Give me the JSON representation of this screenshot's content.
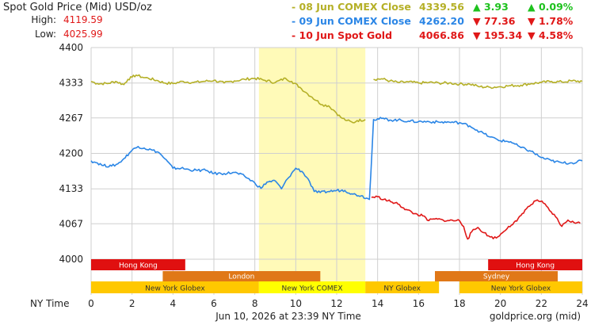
{
  "header": {
    "title": "Spot Gold Price (Mid) USD/oz",
    "high_label": "High:",
    "high_value": "4119.59",
    "low_label": "Low:",
    "low_value": "4025.99"
  },
  "legend": [
    {
      "name": "08 Jun COMEX Close",
      "price": "4339.56",
      "change": "3.93",
      "pct": "0.09%",
      "direction": "up",
      "color": "#b5b027",
      "change_color": "#1ec21e"
    },
    {
      "name": "09 Jun COMEX Close",
      "price": "4262.20",
      "change": "77.36",
      "pct": "1.78%",
      "direction": "down",
      "color": "#2b86e6",
      "change_color": "#e01818"
    },
    {
      "name": "10 Jun Spot Gold",
      "price": "4066.86",
      "change": "195.34",
      "pct": "4.58%",
      "direction": "down",
      "color": "#e01818",
      "change_color": "#e01818"
    }
  ],
  "chart_data": {
    "type": "line",
    "ylim": [
      4000,
      4400
    ],
    "xlim": [
      0,
      24
    ],
    "y_ticks": [
      "4400",
      "4333",
      "4267",
      "4200",
      "4133",
      "4067",
      "4000"
    ],
    "y_tick_values": [
      4400,
      4333,
      4267,
      4200,
      4133,
      4067,
      4000
    ],
    "x_ticks": [
      "0",
      "2",
      "4",
      "6",
      "8",
      "10",
      "12",
      "14",
      "16",
      "18",
      "20",
      "22",
      "24"
    ],
    "x_label": "NY Time",
    "highlight_range": [
      8.2,
      13.4
    ],
    "grid": true,
    "series": [
      {
        "key": "d08",
        "color": "#b5b027",
        "label": "08 Jun COMEX Close",
        "points": [
          [
            0,
            4336
          ],
          [
            0.3,
            4332
          ],
          [
            0.8,
            4332
          ],
          [
            1.2,
            4336
          ],
          [
            1.6,
            4330
          ],
          [
            1.8,
            4340
          ],
          [
            2.0,
            4344
          ],
          [
            2.2,
            4348
          ],
          [
            2.5,
            4344
          ],
          [
            2.8,
            4342
          ],
          [
            3.2,
            4338
          ],
          [
            3.6,
            4333
          ],
          [
            4.0,
            4332
          ],
          [
            4.5,
            4336
          ],
          [
            5.0,
            4334
          ],
          [
            5.5,
            4336
          ],
          [
            6.0,
            4338
          ],
          [
            6.5,
            4333
          ],
          [
            7.0,
            4337
          ],
          [
            7.5,
            4340
          ],
          [
            8.0,
            4342
          ],
          [
            8.5,
            4338
          ],
          [
            9.0,
            4334
          ],
          [
            9.5,
            4342
          ],
          [
            9.8,
            4336
          ],
          [
            10.2,
            4325
          ],
          [
            10.5,
            4315
          ],
          [
            10.8,
            4306
          ],
          [
            11.0,
            4300
          ],
          [
            11.3,
            4292
          ],
          [
            11.6,
            4290
          ],
          [
            11.9,
            4280
          ],
          [
            12.2,
            4268
          ],
          [
            12.5,
            4262
          ],
          [
            12.8,
            4258
          ],
          [
            13.0,
            4262
          ],
          [
            13.4,
            4264
          ],
          [
            13.8,
            4340
          ],
          [
            14.2,
            4341
          ],
          [
            14.6,
            4337
          ],
          [
            15.0,
            4334
          ],
          [
            15.5,
            4335
          ],
          [
            16.0,
            4333
          ],
          [
            16.5,
            4334
          ],
          [
            17.0,
            4333
          ],
          [
            17.5,
            4333
          ],
          [
            18.0,
            4331
          ],
          [
            18.5,
            4331
          ],
          [
            19.0,
            4326
          ],
          [
            19.5,
            4325
          ],
          [
            20.0,
            4326
          ],
          [
            20.5,
            4328
          ],
          [
            21.0,
            4329
          ],
          [
            21.5,
            4332
          ],
          [
            22.0,
            4334
          ],
          [
            22.5,
            4336
          ],
          [
            23.0,
            4335
          ],
          [
            23.5,
            4337
          ],
          [
            24.0,
            4336
          ]
        ]
      },
      {
        "key": "d09",
        "color": "#2b86e6",
        "label": "09 Jun COMEX Close",
        "points": [
          [
            0,
            4186
          ],
          [
            0.3,
            4182
          ],
          [
            0.6,
            4177
          ],
          [
            1.0,
            4176
          ],
          [
            1.3,
            4180
          ],
          [
            1.6,
            4190
          ],
          [
            2.0,
            4206
          ],
          [
            2.3,
            4213
          ],
          [
            2.6,
            4210
          ],
          [
            3.0,
            4206
          ],
          [
            3.3,
            4202
          ],
          [
            3.6,
            4190
          ],
          [
            4.0,
            4172
          ],
          [
            4.4,
            4172
          ],
          [
            4.8,
            4169
          ],
          [
            5.2,
            4168
          ],
          [
            5.6,
            4168
          ],
          [
            6.0,
            4162
          ],
          [
            6.5,
            4162
          ],
          [
            7.0,
            4164
          ],
          [
            7.5,
            4157
          ],
          [
            8.0,
            4144
          ],
          [
            8.3,
            4134
          ],
          [
            8.6,
            4146
          ],
          [
            9.0,
            4148
          ],
          [
            9.3,
            4133
          ],
          [
            9.6,
            4152
          ],
          [
            10.0,
            4172
          ],
          [
            10.3,
            4166
          ],
          [
            10.6,
            4152
          ],
          [
            10.9,
            4128
          ],
          [
            11.2,
            4126
          ],
          [
            11.6,
            4128
          ],
          [
            12.0,
            4130
          ],
          [
            12.4,
            4130
          ],
          [
            12.8,
            4123
          ],
          [
            13.2,
            4120
          ],
          [
            13.6,
            4113
          ],
          [
            13.8,
            4264
          ],
          [
            14.2,
            4266
          ],
          [
            14.6,
            4263
          ],
          [
            15.0,
            4263
          ],
          [
            15.5,
            4261
          ],
          [
            16.0,
            4260
          ],
          [
            16.5,
            4260
          ],
          [
            17.0,
            4259
          ],
          [
            17.5,
            4259
          ],
          [
            18.0,
            4258
          ],
          [
            18.5,
            4252
          ],
          [
            19.0,
            4241
          ],
          [
            19.5,
            4231
          ],
          [
            20.0,
            4224
          ],
          [
            20.5,
            4222
          ],
          [
            21.0,
            4211
          ],
          [
            21.5,
            4204
          ],
          [
            22.0,
            4192
          ],
          [
            22.5,
            4186
          ],
          [
            23.0,
            4182
          ],
          [
            23.5,
            4182
          ],
          [
            24.0,
            4186
          ]
        ]
      },
      {
        "key": "d10",
        "color": "#e01818",
        "label": "10 Jun Spot Gold",
        "points": [
          [
            13.7,
            4117
          ],
          [
            14.0,
            4118
          ],
          [
            14.3,
            4113
          ],
          [
            14.7,
            4108
          ],
          [
            15.0,
            4104
          ],
          [
            15.4,
            4094
          ],
          [
            15.8,
            4086
          ],
          [
            16.2,
            4082
          ],
          [
            16.5,
            4073
          ],
          [
            16.8,
            4076
          ],
          [
            17.2,
            4074
          ],
          [
            17.5,
            4073
          ],
          [
            18.0,
            4073
          ],
          [
            18.2,
            4062
          ],
          [
            18.4,
            4038
          ],
          [
            18.6,
            4052
          ],
          [
            18.9,
            4060
          ],
          [
            19.2,
            4050
          ],
          [
            19.5,
            4042
          ],
          [
            19.8,
            4040
          ],
          [
            20.1,
            4050
          ],
          [
            20.4,
            4062
          ],
          [
            20.8,
            4072
          ],
          [
            21.2,
            4093
          ],
          [
            21.5,
            4103
          ],
          [
            21.8,
            4112
          ],
          [
            22.1,
            4106
          ],
          [
            22.4,
            4092
          ],
          [
            22.7,
            4080
          ],
          [
            23.0,
            4062
          ],
          [
            23.3,
            4074
          ],
          [
            23.6,
            4069
          ],
          [
            23.9,
            4068
          ]
        ]
      }
    ]
  },
  "sessions": [
    {
      "label": "Hong Kong",
      "start": 0,
      "end": 4.6,
      "row": 0,
      "color": "#e01010",
      "text_color": "#ffffff"
    },
    {
      "label": "Hong Kong",
      "start": 19.4,
      "end": 24,
      "row": 0,
      "color": "#e01010",
      "text_color": "#ffffff"
    },
    {
      "label": "London",
      "start": 3.5,
      "end": 11.2,
      "row": 1,
      "color": "#e07818",
      "text_color": "#ffffff"
    },
    {
      "label": "Sydney",
      "start": 16.8,
      "end": 22.8,
      "row": 1,
      "color": "#e07818",
      "text_color": "#ffffff"
    },
    {
      "label": "New York Globex",
      "start": 0,
      "end": 8.2,
      "row": 2,
      "color": "#ffc800",
      "text_color": "#333333"
    },
    {
      "label": "New York COMEX",
      "start": 8.2,
      "end": 13.4,
      "row": 2,
      "color": "#ffff00",
      "text_color": "#333333"
    },
    {
      "label": "NY Globex",
      "start": 13.4,
      "end": 17.0,
      "row": 2,
      "color": "#ffc800",
      "text_color": "#333333"
    },
    {
      "label": "New York Globex",
      "start": 18.0,
      "end": 24,
      "row": 2,
      "color": "#ffc800",
      "text_color": "#333333"
    }
  ],
  "footer": {
    "timestamp": "Jun 10, 2026 at 23:39 NY Time",
    "source": "goldprice.org (mid)"
  }
}
